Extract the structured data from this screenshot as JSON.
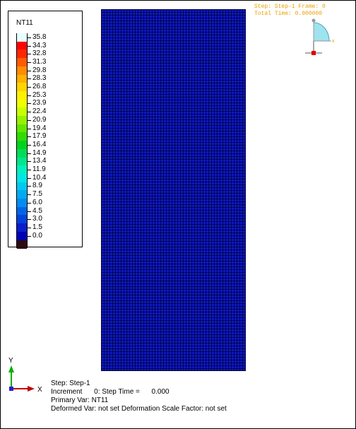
{
  "legend": {
    "title": "NT11",
    "levels": [
      {
        "label": "35.8",
        "color": "#e6ffff"
      },
      {
        "label": "34.3",
        "color": "#ff0000"
      },
      {
        "label": "32.8",
        "color": "#ff2600"
      },
      {
        "label": "31.3",
        "color": "#ff5a00"
      },
      {
        "label": "29.8",
        "color": "#ff8c00"
      },
      {
        "label": "28.3",
        "color": "#ffb000"
      },
      {
        "label": "26.8",
        "color": "#ffd400"
      },
      {
        "label": "25.3",
        "color": "#fff000"
      },
      {
        "label": "23.9",
        "color": "#f0ff00"
      },
      {
        "label": "22.4",
        "color": "#c8ff00"
      },
      {
        "label": "20.9",
        "color": "#96f000"
      },
      {
        "label": "19.4",
        "color": "#64e600"
      },
      {
        "label": "17.9",
        "color": "#32dc00"
      },
      {
        "label": "16.4",
        "color": "#00d21e"
      },
      {
        "label": "14.9",
        "color": "#00dc5a"
      },
      {
        "label": "13.4",
        "color": "#00e68c"
      },
      {
        "label": "11.9",
        "color": "#00f0be"
      },
      {
        "label": "10.4",
        "color": "#00e6e6"
      },
      {
        "label": "8.9",
        "color": "#00c8f0"
      },
      {
        "label": "7.5",
        "color": "#00aaf0"
      },
      {
        "label": "6.0",
        "color": "#008cf0"
      },
      {
        "label": "4.5",
        "color": "#0064e6"
      },
      {
        "label": "3.0",
        "color": "#0041dc"
      },
      {
        "label": "1.5",
        "color": "#0a1ecc"
      },
      {
        "label": "0.0",
        "color": "#0000b4"
      }
    ],
    "bottom_color": "#2b0a10"
  },
  "mesh": {
    "fill_color": "#0d17c9"
  },
  "header": {
    "step_line": "Step: Step-1   Frame: 0",
    "time_line": "Total Time: 0.000000"
  },
  "axes": {
    "y_label": "Y",
    "x_label": "X",
    "y_color": "#00b000",
    "x_color": "#c00000"
  },
  "info": {
    "step": "Step: Step-1",
    "increment": "Increment      0: Step Time =      0.000",
    "primary_var": "Primary Var: NT11",
    "deformed": "Deformed Var: not set   Deformation Scale Factor: not set"
  }
}
